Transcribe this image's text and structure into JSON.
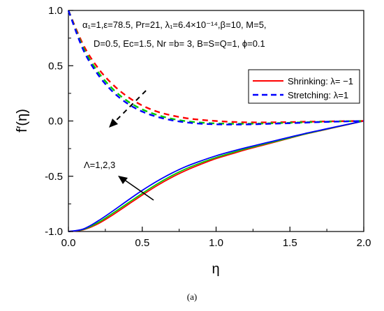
{
  "chart_data": {
    "type": "line",
    "title": "",
    "xlabel": "η",
    "ylabel": "f′(η)",
    "xlim": [
      0,
      2.0
    ],
    "ylim": [
      -1.0,
      1.0
    ],
    "x_ticks": [
      "0.0",
      "0.5",
      "1.0",
      "1.5",
      "2.0"
    ],
    "y_ticks": [
      "-1.0",
      "-0.5",
      "0.0",
      "0.5",
      "1.0"
    ],
    "x": [
      0,
      0.1,
      0.2,
      0.3,
      0.4,
      0.5,
      0.6,
      0.7,
      0.8,
      0.9,
      1.0,
      1.1,
      1.2,
      1.3,
      1.4,
      1.5,
      1.6,
      1.7,
      1.8,
      1.9,
      2.0
    ],
    "annotations": {
      "params_line1": "α₁=1,ε=78.5, Pr=21, λ₁=6.4×10⁻¹⁴,β=10, M=5,",
      "params_line2": "D=0.5, Ec=1.5, Nr =b= 3, B=S=Q=1, ϕ=0.1",
      "lambda_label": "Λ=1,2,3"
    },
    "legend": {
      "position": "upper-right",
      "entries": [
        {
          "label": "Shrinking: λ= −1",
          "color": "#ff0000",
          "style": "solid"
        },
        {
          "label": "Stretching: λ=1",
          "color": "#0000ff",
          "style": "dashed"
        }
      ]
    },
    "series": [
      {
        "color": "#ff0000",
        "style": "solid",
        "values": [
          -1.0,
          -0.985,
          -0.93,
          -0.85,
          -0.76,
          -0.67,
          -0.585,
          -0.51,
          -0.445,
          -0.39,
          -0.34,
          -0.3,
          -0.26,
          -0.225,
          -0.19,
          -0.155,
          -0.12,
          -0.09,
          -0.06,
          -0.03,
          0.0
        ]
      },
      {
        "color": "#00cc00",
        "style": "solid",
        "values": [
          -1.0,
          -0.982,
          -0.92,
          -0.835,
          -0.745,
          -0.655,
          -0.57,
          -0.495,
          -0.43,
          -0.377,
          -0.33,
          -0.29,
          -0.252,
          -0.218,
          -0.185,
          -0.152,
          -0.118,
          -0.088,
          -0.058,
          -0.029,
          0.0
        ]
      },
      {
        "color": "#0000ff",
        "style": "solid",
        "values": [
          -1.0,
          -0.978,
          -0.905,
          -0.815,
          -0.72,
          -0.628,
          -0.545,
          -0.472,
          -0.41,
          -0.36,
          -0.315,
          -0.277,
          -0.242,
          -0.21,
          -0.178,
          -0.146,
          -0.114,
          -0.085,
          -0.056,
          -0.028,
          0.0
        ]
      },
      {
        "color": "#ff0000",
        "style": "dashed",
        "values": [
          1.0,
          0.69,
          0.48,
          0.33,
          0.22,
          0.14,
          0.085,
          0.05,
          0.025,
          0.01,
          0.0,
          -0.008,
          -0.012,
          -0.013,
          -0.012,
          -0.01,
          -0.007,
          -0.005,
          -0.003,
          -0.001,
          0.0
        ]
      },
      {
        "color": "#00cc00",
        "style": "dashed",
        "values": [
          1.0,
          0.665,
          0.445,
          0.29,
          0.18,
          0.105,
          0.055,
          0.02,
          -0.002,
          -0.015,
          -0.022,
          -0.025,
          -0.025,
          -0.023,
          -0.02,
          -0.016,
          -0.012,
          -0.008,
          -0.005,
          -0.002,
          0.0
        ]
      },
      {
        "color": "#0000ff",
        "style": "dashed",
        "values": [
          1.0,
          0.645,
          0.42,
          0.265,
          0.158,
          0.085,
          0.038,
          0.007,
          -0.013,
          -0.025,
          -0.03,
          -0.032,
          -0.031,
          -0.028,
          -0.024,
          -0.02,
          -0.015,
          -0.01,
          -0.006,
          -0.003,
          0.0
        ]
      }
    ]
  },
  "caption": "(a)"
}
